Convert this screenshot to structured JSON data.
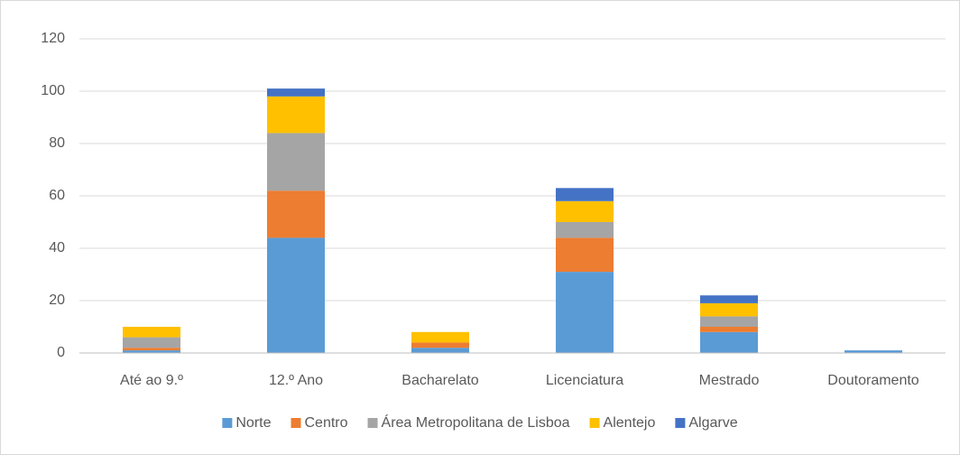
{
  "chart_data": {
    "type": "stacked_bar",
    "categories": [
      "Até ao 9.º",
      "12.º Ano",
      "Bacharelato",
      "Licenciatura",
      "Mestrado",
      "Doutoramento"
    ],
    "series": [
      {
        "name": "Norte",
        "color": "#5b9bd5",
        "values": [
          1,
          44,
          2,
          31,
          8,
          1
        ]
      },
      {
        "name": "Centro",
        "color": "#ed7d31",
        "values": [
          1,
          18,
          2,
          13,
          2,
          0
        ]
      },
      {
        "name": "Área Metropolitana de Lisboa",
        "color": "#a5a5a5",
        "values": [
          4,
          22,
          0,
          6,
          4,
          0
        ]
      },
      {
        "name": "Alentejo",
        "color": "#ffc000",
        "values": [
          4,
          14,
          4,
          8,
          5,
          0
        ]
      },
      {
        "name": "Algarve",
        "color": "#4472c4",
        "values": [
          0,
          3,
          0,
          5,
          3,
          0
        ]
      }
    ],
    "ylim": [
      0,
      120
    ],
    "yticks": [
      0,
      20,
      40,
      60,
      80,
      100,
      120
    ],
    "grid": true,
    "legend": "bottom"
  }
}
